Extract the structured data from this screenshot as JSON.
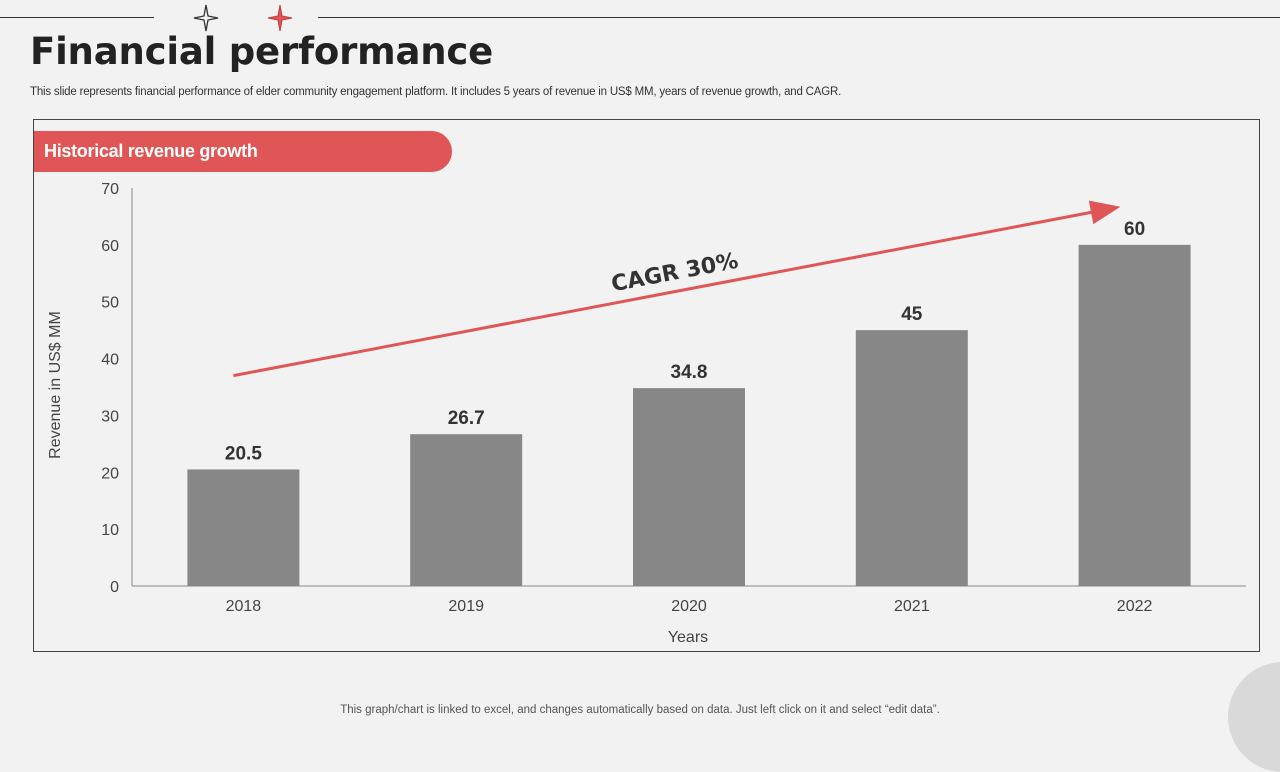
{
  "page": {
    "title": "Financial performance",
    "subtitle": "This slide represents financial performance of elder community engagement platform. It includes 5 years of revenue in US$ MM,  years of revenue growth, and CAGR.",
    "footnote": "This graph/chart is linked to excel,  and changes automatically based on data. Just left click on it and select “edit data”."
  },
  "colors": {
    "accent": "#e05656",
    "bar": "#878787",
    "text_dark": "#222222"
  },
  "chart_data": {
    "type": "bar",
    "title": "Historical revenue growth",
    "categories": [
      "2018",
      "2019",
      "2020",
      "2021",
      "2022"
    ],
    "values": [
      20.5,
      26.7,
      34.8,
      45,
      60
    ],
    "data_labels": [
      "20.5",
      "26.7",
      "34.8",
      "45",
      "60"
    ],
    "xlabel": "Years",
    "ylabel": "Revenue  in US$ MM",
    "ylim": [
      0,
      70
    ],
    "yticks": [
      0,
      10,
      20,
      30,
      40,
      50,
      60,
      70
    ],
    "grid": false,
    "annotation": {
      "text": "CAGR 30%",
      "from_value": 37,
      "to_value": 66.5
    }
  }
}
